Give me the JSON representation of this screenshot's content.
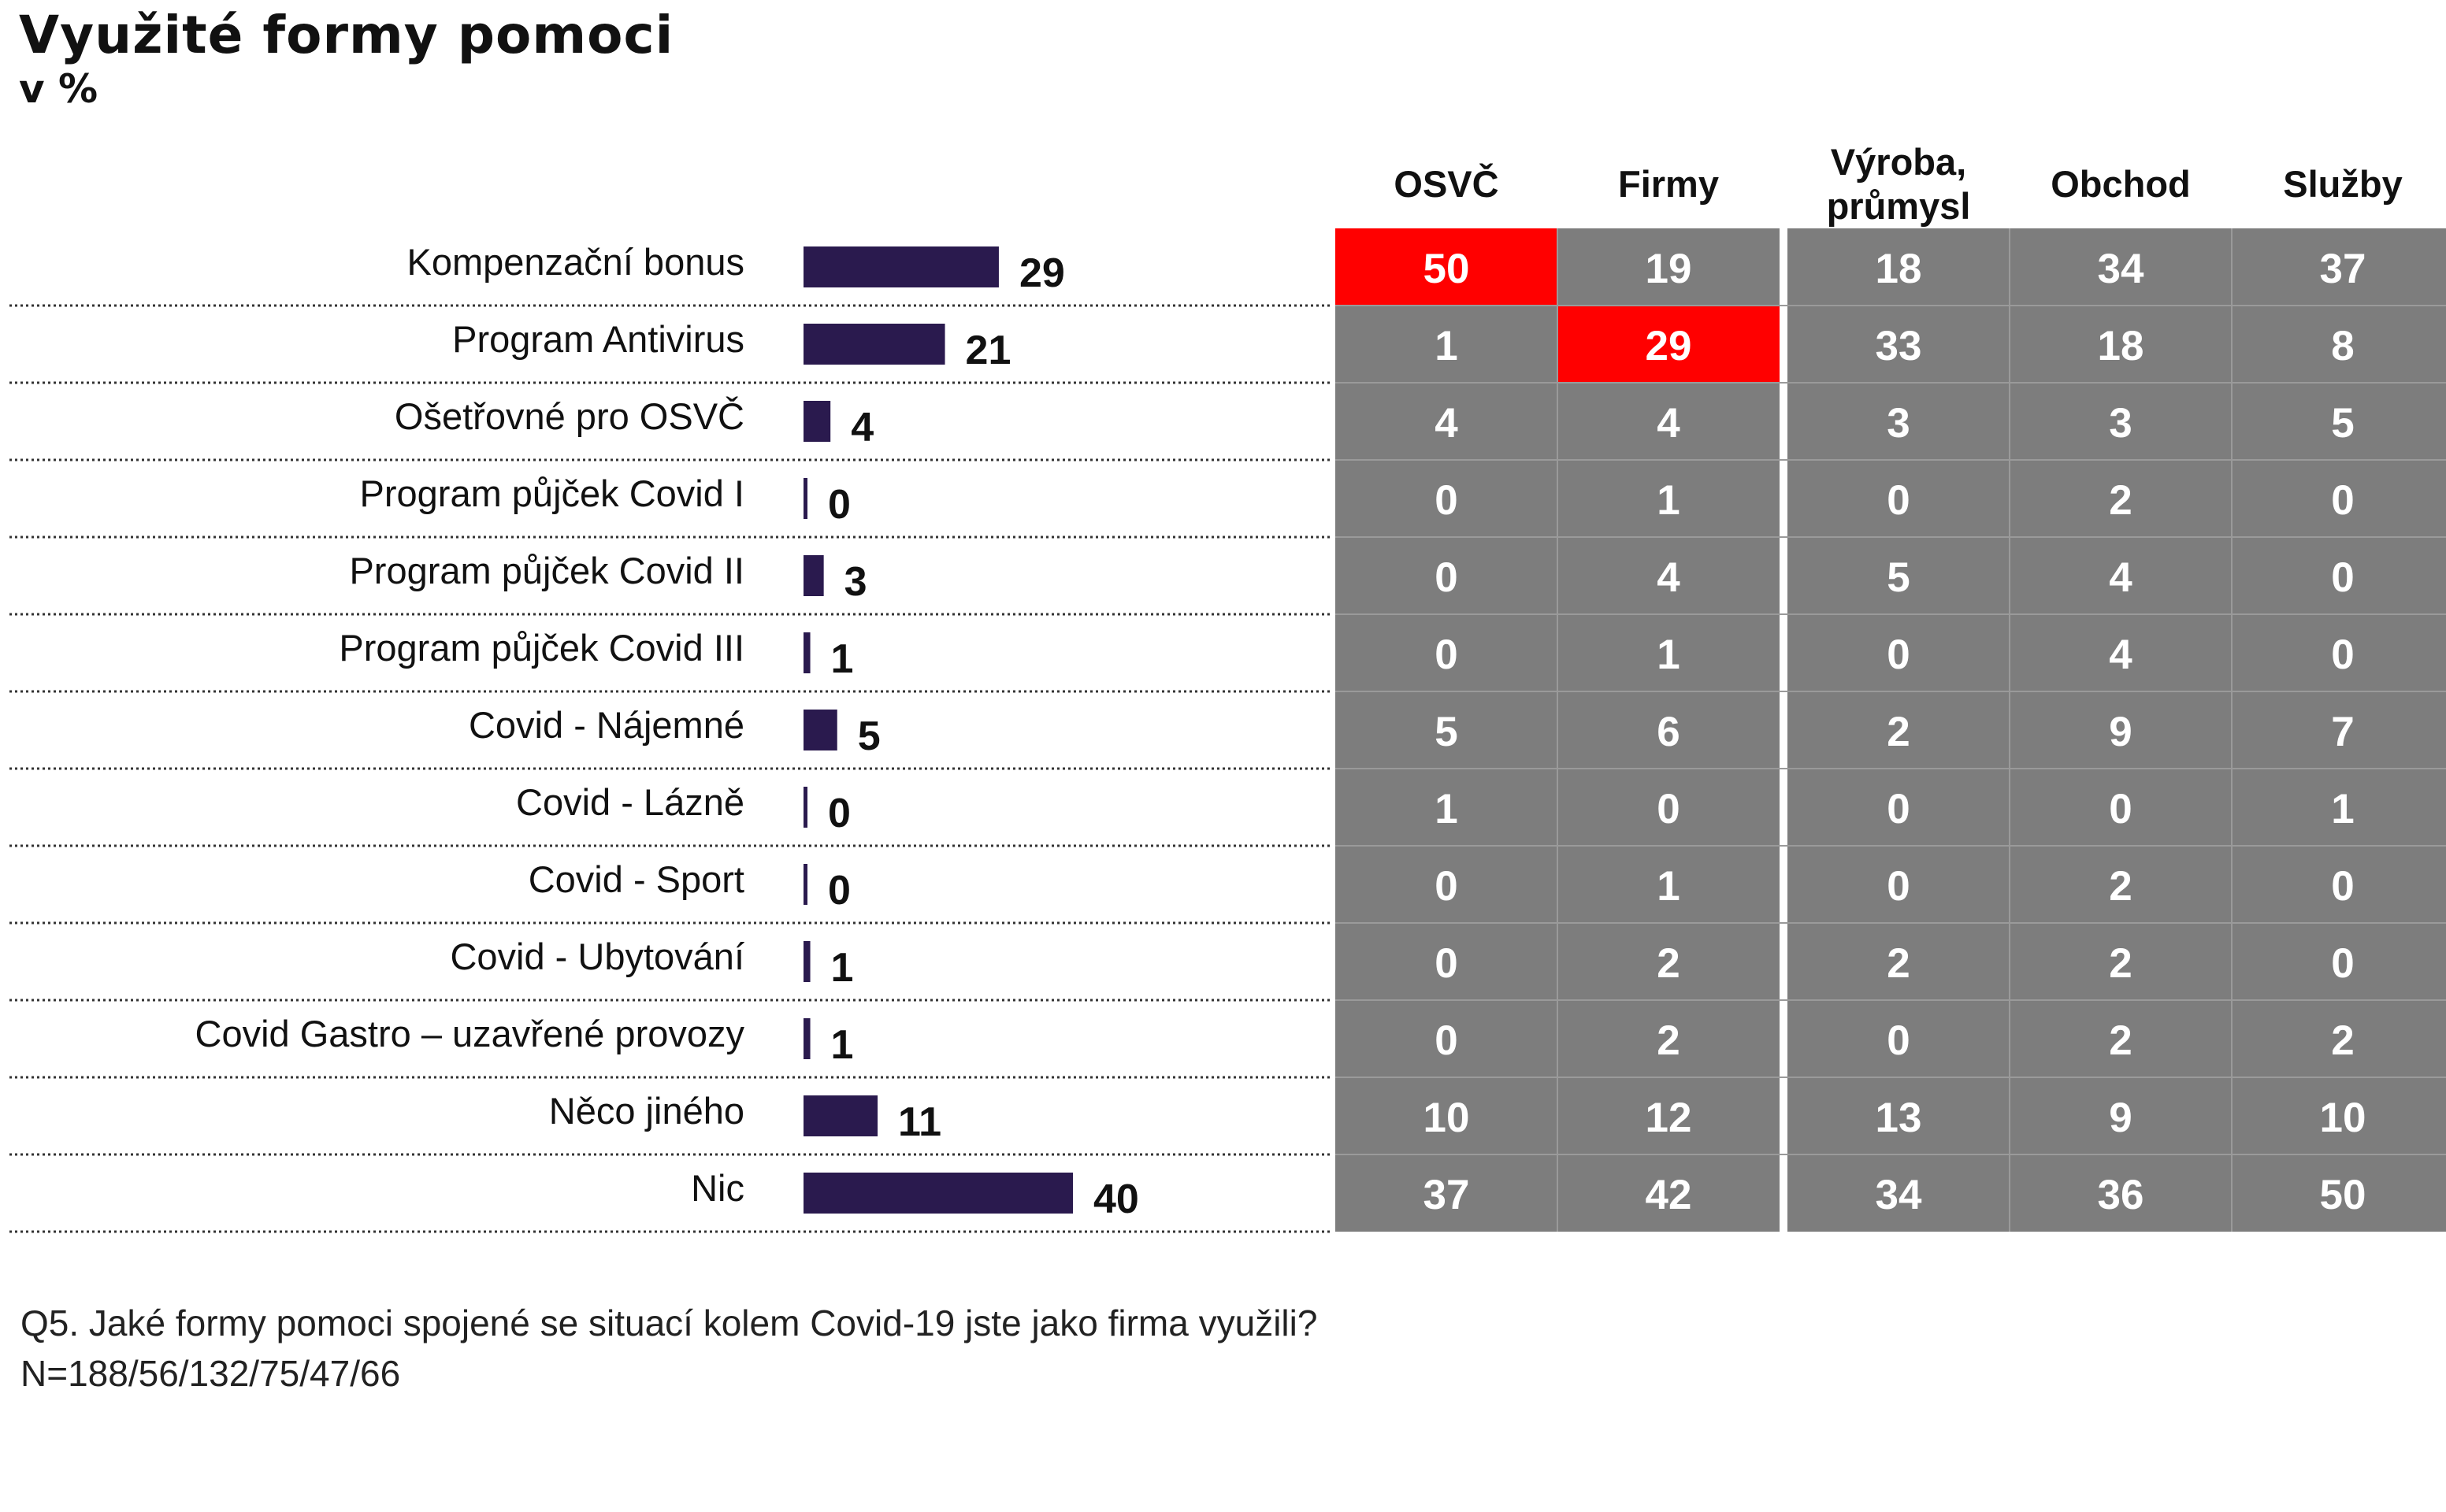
{
  "title": "Využité formy pomoci",
  "subtitle": "v %",
  "chart_data": [
    {
      "type": "bar",
      "orientation": "horizontal",
      "categories": [
        "Kompenzační bonus",
        "Program Antivirus",
        "Ošetřovné pro OSVČ",
        "Program půjček Covid I",
        "Program půjček Covid II",
        "Program půjček Covid III",
        "Covid - Nájemné",
        "Covid - Lázně",
        "Covid - Sport",
        "Covid - Ubytování",
        "Covid Gastro – uzavřené provozy",
        "Něco jiného",
        "Nic"
      ],
      "values": [
        29,
        21,
        4,
        0,
        3,
        1,
        5,
        0,
        0,
        1,
        1,
        11,
        40
      ],
      "colors": {
        "bar": "#2a1a4e"
      }
    },
    {
      "type": "table",
      "columns": [
        "OSVČ",
        "Firmy",
        "Výroba, průmysl",
        "Obchod",
        "Služby"
      ],
      "rows": [
        [
          50,
          19,
          18,
          34,
          37
        ],
        [
          1,
          29,
          33,
          18,
          8
        ],
        [
          4,
          4,
          3,
          3,
          5
        ],
        [
          0,
          1,
          0,
          2,
          0
        ],
        [
          0,
          4,
          5,
          4,
          0
        ],
        [
          0,
          1,
          0,
          4,
          0
        ],
        [
          5,
          6,
          2,
          9,
          7
        ],
        [
          1,
          0,
          0,
          0,
          1
        ],
        [
          0,
          1,
          0,
          2,
          0
        ],
        [
          0,
          2,
          2,
          2,
          0
        ],
        [
          0,
          2,
          0,
          2,
          2
        ],
        [
          10,
          12,
          13,
          9,
          10
        ],
        [
          37,
          42,
          34,
          36,
          50
        ]
      ],
      "highlighted_cells": [
        [
          0,
          0
        ],
        [
          1,
          1
        ]
      ],
      "colors": {
        "cell": "#7d7d7d",
        "highlight": "#ff0000",
        "text": "#ffffff"
      }
    }
  ],
  "footnote": {
    "question": "Q5. Jaké formy pomoci spojené se situací kolem Covid-19 jste jako firma využili?",
    "sample": "N=188/56/132/75/47/66"
  }
}
